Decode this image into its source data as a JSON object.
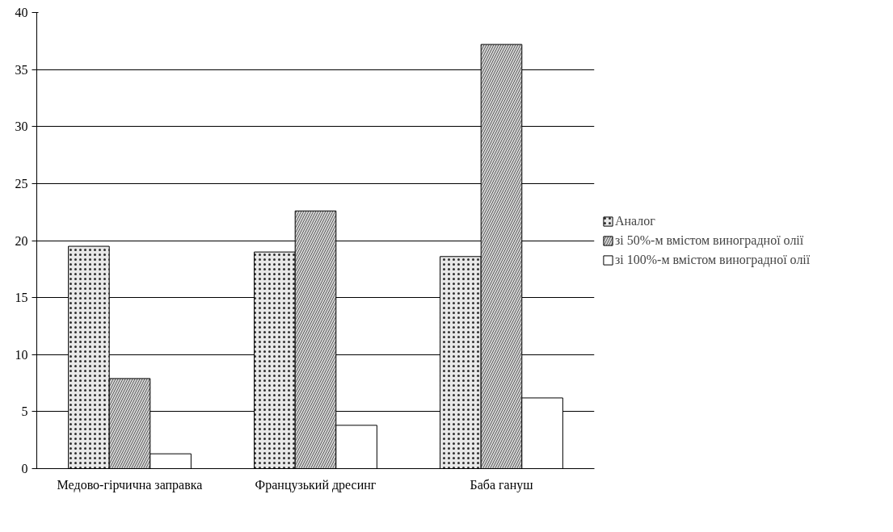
{
  "chart_data": {
    "type": "bar",
    "categories": [
      "Медово-гірчична заправка",
      "Французький дресинг",
      "Баба гануш"
    ],
    "series": [
      {
        "name": "Аналог",
        "color": "#e8e8e8",
        "values": [
          19.5,
          19.0,
          18.6
        ]
      },
      {
        "name": "зі 50%-м вмістом виноградної олії",
        "color": "#d4d4d4",
        "values": [
          7.9,
          22.6,
          37.2
        ]
      },
      {
        "name": "зі 100%-м вмістом виноградної олії",
        "color": "#ffffff",
        "values": [
          1.3,
          3.8,
          6.2
        ]
      }
    ],
    "ylim": [
      0,
      40
    ],
    "yticks": [
      0,
      5,
      10,
      15,
      20,
      25,
      30,
      35,
      40
    ],
    "grid": "y",
    "legend": "right"
  }
}
